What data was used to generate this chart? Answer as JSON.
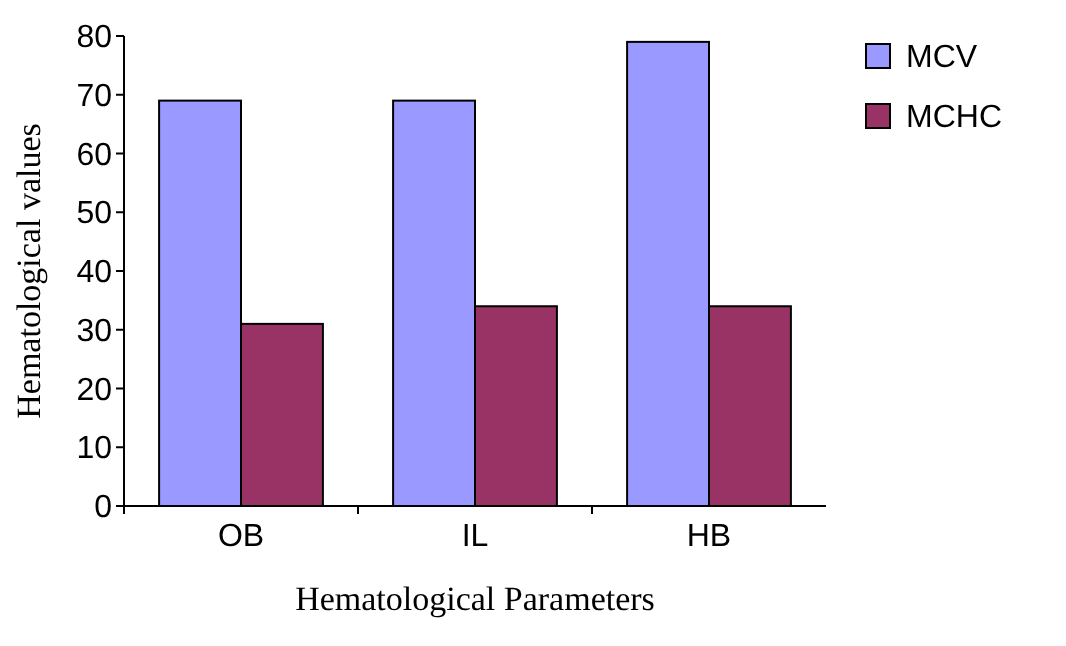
{
  "chart_data": {
    "type": "bar",
    "xlabel": "Hematological Parameters",
    "ylabel": "Hematological values",
    "categories": [
      "OB",
      "IL",
      "HB"
    ],
    "series": [
      {
        "name": "MCV",
        "color": "#9999ff",
        "values": [
          69,
          69,
          79
        ]
      },
      {
        "name": "MCHC",
        "color": "#993366",
        "values": [
          31,
          34,
          34
        ]
      }
    ],
    "ylim": [
      0,
      80
    ],
    "yticks": [
      0,
      10,
      20,
      30,
      40,
      50,
      60,
      70,
      80
    ],
    "legend": "top right"
  }
}
